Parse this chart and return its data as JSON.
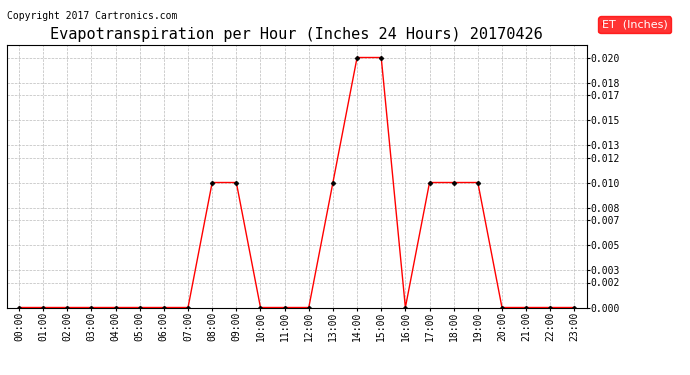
{
  "title": "Evapotranspiration per Hour (Inches 24 Hours) 20170426",
  "copyright": "Copyright 2017 Cartronics.com",
  "legend_label": "ET  (Inches)",
  "legend_bg": "#ff0000",
  "legend_text_color": "#ffffff",
  "line_color": "#ff0000",
  "marker_color": "#000000",
  "background_color": "#ffffff",
  "grid_color": "#bbbbbb",
  "hours": [
    "00:00",
    "01:00",
    "02:00",
    "03:00",
    "04:00",
    "05:00",
    "06:00",
    "07:00",
    "08:00",
    "09:00",
    "10:00",
    "11:00",
    "12:00",
    "13:00",
    "14:00",
    "15:00",
    "16:00",
    "17:00",
    "18:00",
    "19:00",
    "20:00",
    "21:00",
    "22:00",
    "23:00"
  ],
  "values": [
    0.0,
    0.0,
    0.0,
    0.0,
    0.0,
    0.0,
    0.0,
    0.0,
    0.01,
    0.01,
    0.0,
    0.0,
    0.0,
    0.01,
    0.02,
    0.02,
    0.0,
    0.01,
    0.01,
    0.01,
    0.0,
    0.0,
    0.0,
    0.0
  ],
  "yticks": [
    0.0,
    0.002,
    0.003,
    0.005,
    0.007,
    0.008,
    0.01,
    0.012,
    0.013,
    0.015,
    0.017,
    0.018,
    0.02
  ],
  "ylim": [
    0.0,
    0.021
  ],
  "title_fontsize": 11,
  "tick_fontsize": 7,
  "copyright_fontsize": 7
}
